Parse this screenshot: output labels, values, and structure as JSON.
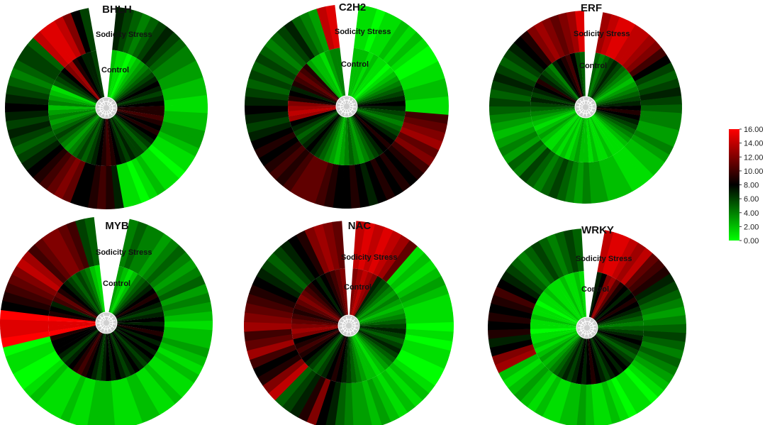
{
  "chart_data": {
    "type": "heatmap",
    "layout": "radial heatmaps, 2 rows x 3 columns",
    "ring_labels": {
      "outer": "Sodicity Stress",
      "inner": "Control"
    },
    "color_scale": {
      "min": 0,
      "max": 16,
      "colors": [
        "#00ff00",
        "#000000",
        "#ff0000"
      ],
      "ticks": [
        "16.00",
        "14.00",
        "12.00",
        "10.00",
        "8.00",
        "6.00",
        "4.00",
        "2.00",
        "0.00"
      ]
    },
    "panels": [
      {
        "title": "BHLH",
        "gap": "top",
        "outer": [
          7,
          6,
          5,
          4,
          5,
          6,
          7,
          6,
          5,
          4,
          4,
          3,
          3,
          2,
          2,
          1,
          1,
          2,
          2,
          3,
          3,
          2,
          1,
          1,
          0,
          1,
          1,
          2,
          1,
          0,
          1,
          1,
          7,
          9,
          10,
          9,
          8,
          8,
          11,
          12,
          11,
          10,
          9,
          8,
          7,
          6,
          5,
          6,
          7,
          6,
          7,
          8,
          7,
          6,
          5,
          4,
          5,
          6,
          6,
          5,
          14,
          15,
          15,
          14,
          12,
          8,
          6
        ],
        "inner": [
          2,
          1,
          1,
          0,
          1,
          2,
          3,
          4,
          5,
          6,
          7,
          8,
          7,
          6,
          7,
          8,
          9,
          9,
          10,
          9,
          8,
          9,
          8,
          7,
          6,
          5,
          6,
          6,
          7,
          6,
          7,
          8,
          9,
          10,
          9,
          8,
          7,
          6,
          5,
          6,
          5,
          4,
          3,
          4,
          5,
          6,
          5,
          4,
          3,
          4,
          3,
          2,
          4,
          3,
          2,
          1,
          5,
          6,
          7,
          8,
          12,
          13,
          9,
          8,
          7,
          7,
          6
        ]
      },
      {
        "title": "C2H2",
        "gap": "top",
        "outer": [
          1,
          1,
          0,
          1,
          1,
          2,
          1,
          2,
          1,
          0,
          0,
          1,
          1,
          2,
          2,
          1,
          1,
          10,
          11,
          12,
          13,
          11,
          12,
          10,
          9,
          8,
          9,
          8,
          9,
          8,
          7,
          8,
          9,
          8,
          8,
          9,
          10,
          11,
          11,
          11,
          10,
          9,
          10,
          9,
          8,
          9,
          8,
          7,
          6,
          7,
          8,
          7,
          6,
          5,
          6,
          5,
          6,
          5,
          4,
          5,
          6,
          7,
          5,
          4,
          3,
          14,
          15
        ],
        "inner": [
          2,
          2,
          2,
          1,
          2,
          1,
          1,
          0,
          1,
          2,
          3,
          4,
          5,
          6,
          7,
          8,
          7,
          6,
          5,
          4,
          5,
          6,
          7,
          8,
          9,
          8,
          7,
          6,
          5,
          4,
          3,
          4,
          5,
          4,
          3,
          2,
          3,
          4,
          5,
          6,
          7,
          8,
          7,
          6,
          5,
          6,
          7,
          8,
          13,
          14,
          13,
          12,
          9,
          8,
          7,
          9,
          10,
          11,
          10,
          9,
          3,
          2,
          2,
          1,
          3,
          4,
          4
        ]
      },
      {
        "title": "ERF",
        "gap": "top",
        "outer": [
          13,
          14,
          15,
          15,
          14,
          14,
          13,
          12,
          10,
          8,
          6,
          5,
          6,
          7,
          6,
          5,
          4,
          4,
          3,
          3,
          4,
          3,
          2,
          2,
          1,
          1,
          1,
          2,
          2,
          2,
          3,
          3,
          4,
          3,
          4,
          5,
          6,
          5,
          4,
          5,
          6,
          4,
          5,
          3,
          4,
          3,
          2,
          3,
          4,
          5,
          6,
          5,
          6,
          7,
          6,
          5,
          6,
          7,
          8,
          9,
          12,
          13,
          12,
          11,
          12,
          13,
          15
        ],
        "inner": [
          5,
          4,
          5,
          6,
          7,
          6,
          5,
          4,
          3,
          2,
          3,
          4,
          5,
          6,
          7,
          8,
          9,
          8,
          7,
          6,
          5,
          4,
          3,
          2,
          1,
          1,
          1,
          2,
          1,
          1,
          2,
          1,
          2,
          2,
          3,
          2,
          1,
          2,
          1,
          2,
          1,
          1,
          2,
          3,
          2,
          1,
          2,
          3,
          4,
          5,
          6,
          7,
          6,
          7,
          8,
          9,
          7,
          6,
          5,
          4,
          7,
          8,
          9,
          10,
          8,
          6,
          5
        ]
      },
      {
        "title": "MYB",
        "gap": "top",
        "outer": [
          4,
          5,
          4,
          4,
          3,
          4,
          5,
          4,
          3,
          4,
          5,
          3,
          4,
          3,
          2,
          1,
          2,
          2,
          3,
          2,
          1,
          2,
          1,
          1,
          2,
          1,
          1,
          2,
          2,
          1,
          1,
          1,
          2,
          2,
          2,
          1,
          1,
          2,
          1,
          1,
          1,
          2,
          1,
          0,
          0,
          1,
          1,
          0,
          16,
          15,
          15,
          16,
          8,
          9,
          10,
          11,
          12,
          14,
          13,
          10,
          11,
          12,
          12,
          11,
          10,
          6,
          5
        ],
        "inner": [
          3,
          2,
          1,
          2,
          4,
          5,
          6,
          7,
          8,
          9,
          8,
          7,
          6,
          7,
          8,
          7,
          8,
          9,
          8,
          7,
          8,
          7,
          8,
          7,
          6,
          7,
          8,
          7,
          6,
          7,
          8,
          7,
          8,
          7,
          6,
          7,
          8,
          9,
          10,
          9,
          8,
          7,
          6,
          7,
          8,
          8,
          8,
          9,
          16,
          15,
          15,
          16,
          9,
          8,
          7,
          10,
          11,
          9,
          8,
          7,
          6,
          5,
          6,
          5,
          4,
          2,
          1
        ]
      },
      {
        "title": "NAC",
        "gap": "top",
        "outer": [
          14,
          15,
          14,
          15,
          14,
          13,
          11,
          1,
          2,
          1,
          2,
          3,
          2,
          1,
          1,
          1,
          0,
          1,
          0,
          1,
          1,
          0,
          0,
          1,
          2,
          1,
          2,
          1,
          2,
          3,
          2,
          3,
          3,
          4,
          5,
          7,
          8,
          12,
          9,
          7,
          6,
          5,
          14,
          12,
          9,
          8,
          10,
          13,
          11,
          10,
          13,
          12,
          11,
          10,
          9,
          8,
          7,
          6,
          5,
          6,
          7,
          8,
          9,
          12,
          13,
          12,
          11
        ],
        "inner": [
          12,
          13,
          14,
          13,
          12,
          7,
          6,
          5,
          4,
          3,
          4,
          3,
          2,
          3,
          4,
          5,
          6,
          7,
          6,
          5,
          6,
          7,
          6,
          5,
          4,
          3,
          2,
          1,
          2,
          2,
          3,
          4,
          5,
          6,
          7,
          8,
          9,
          8,
          7,
          6,
          5,
          6,
          7,
          8,
          9,
          10,
          9,
          8,
          12,
          13,
          12,
          11,
          10,
          9,
          10,
          11,
          12,
          11,
          10,
          9,
          8,
          7,
          8,
          9,
          10,
          11,
          12
        ]
      },
      {
        "title": "WRKY",
        "gap": "top",
        "outer": [
          14,
          15,
          15,
          14,
          13,
          14,
          11,
          10,
          9,
          7,
          6,
          5,
          4,
          3,
          4,
          5,
          6,
          5,
          4,
          5,
          4,
          3,
          2,
          1,
          0,
          1,
          1,
          0,
          1,
          2,
          1,
          1,
          2,
          3,
          2,
          2,
          1,
          1,
          2,
          1,
          2,
          3,
          2,
          1,
          2,
          13,
          12,
          8,
          7,
          9,
          8,
          9,
          8,
          9,
          10,
          8,
          7,
          6,
          5,
          4,
          5,
          6,
          5,
          4,
          5,
          6,
          5
        ],
        "inner": [
          7,
          8,
          12,
          13,
          11,
          9,
          8,
          7,
          8,
          9,
          8,
          7,
          6,
          5,
          4,
          5,
          6,
          7,
          8,
          7,
          6,
          5,
          6,
          7,
          8,
          7,
          8,
          7,
          6,
          7,
          8,
          9,
          8,
          7,
          8,
          7,
          6,
          7,
          6,
          5,
          4,
          3,
          2,
          3,
          2,
          1,
          2,
          1,
          1,
          0,
          1,
          1,
          2,
          1,
          1,
          0,
          1,
          1,
          2,
          1,
          1,
          1,
          2,
          1,
          1,
          2,
          1
        ]
      }
    ]
  }
}
